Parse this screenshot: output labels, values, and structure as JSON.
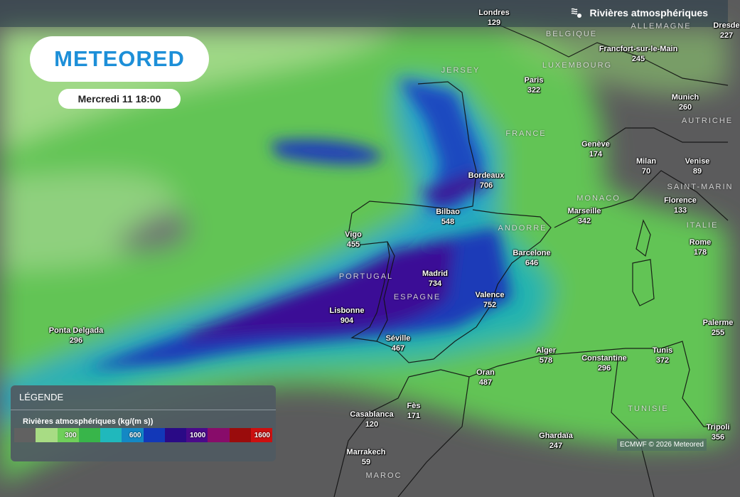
{
  "header": {
    "layer_title": "Rivières atmosphériques",
    "layer_icon": "atmospheric-river-icon"
  },
  "logo": "METEORED",
  "date": "Mercredi 11 18:00",
  "cities": [
    {
      "name": "Londres",
      "value": "129"
    },
    {
      "name": "Paris",
      "value": "322"
    },
    {
      "name": "Francfort-sur-le-Main",
      "value": "245"
    },
    {
      "name": "Munich",
      "value": "260"
    },
    {
      "name": "Dresde",
      "value": "227"
    },
    {
      "name": "Genève",
      "value": "174"
    },
    {
      "name": "Milan",
      "value": "70"
    },
    {
      "name": "Venise",
      "value": "89"
    },
    {
      "name": "Florence",
      "value": "133"
    },
    {
      "name": "Rome",
      "value": "178"
    },
    {
      "name": "Bordeaux",
      "value": "706"
    },
    {
      "name": "Bilbao",
      "value": "548"
    },
    {
      "name": "Marseille",
      "value": "342"
    },
    {
      "name": "Barcelone",
      "value": "646"
    },
    {
      "name": "Vigo",
      "value": "455"
    },
    {
      "name": "Madrid",
      "value": "734"
    },
    {
      "name": "Valence",
      "value": "752"
    },
    {
      "name": "Lisbonne",
      "value": "904"
    },
    {
      "name": "Séville",
      "value": "467"
    },
    {
      "name": "Ponta Delgada",
      "value": "296"
    },
    {
      "name": "Alger",
      "value": "578"
    },
    {
      "name": "Constantine",
      "value": "296"
    },
    {
      "name": "Tunis",
      "value": "372"
    },
    {
      "name": "Oran",
      "value": "487"
    },
    {
      "name": "Palerme",
      "value": "255"
    },
    {
      "name": "Tripoli",
      "value": "356"
    },
    {
      "name": "Fès",
      "value": "171"
    },
    {
      "name": "Casablanca",
      "value": "120"
    },
    {
      "name": "Marrakech",
      "value": "59"
    },
    {
      "name": "Ghardaïa",
      "value": "247"
    }
  ],
  "countries": [
    "BELGIQUE",
    "ALLEMAGNE",
    "LUXEMBOURG",
    "FRANCE",
    "AUTRICHE",
    "MONACO",
    "SAINT-MARIN",
    "ITALIE",
    "ANDORRE",
    "PORTUGAL",
    "ESPAGNE",
    "JERSEY",
    "TUNISIE",
    "MAROC"
  ],
  "legend": {
    "title": "LÉGENDE",
    "subtitle": "Rivières atmosphériques (kg/(m s))",
    "bins": [
      {
        "color": "#616161",
        "label": ""
      },
      {
        "color": "#a8dc84",
        "label": ""
      },
      {
        "color": "#6fcf5a",
        "label": "300"
      },
      {
        "color": "#38b54a",
        "label": ""
      },
      {
        "color": "#20b8bc",
        "label": ""
      },
      {
        "color": "#1488c4",
        "label": "600"
      },
      {
        "color": "#1238b8",
        "label": ""
      },
      {
        "color": "#2a0a86",
        "label": ""
      },
      {
        "color": "#4a0a8a",
        "label": "1000"
      },
      {
        "color": "#880c6a",
        "label": ""
      },
      {
        "color": "#9a0c0c",
        "label": ""
      },
      {
        "color": "#cc1010",
        "label": "1600"
      }
    ]
  },
  "credit": "ECMWF © 2026 Meteored"
}
